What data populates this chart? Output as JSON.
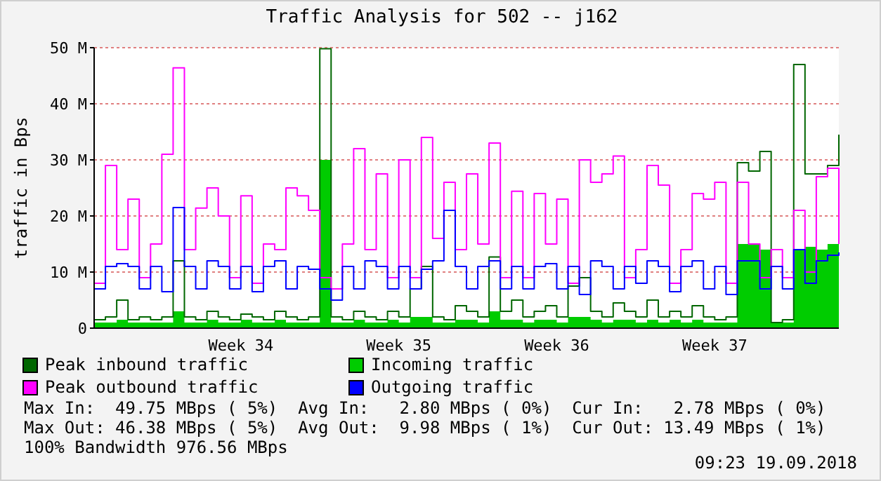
{
  "chart_data": {
    "type": "step",
    "title": "Traffic Analysis for 502 -- j162",
    "ylabel": "traffic in Bps",
    "categories": [
      null,
      null,
      null,
      null,
      null,
      null,
      null,
      null,
      null,
      null,
      null,
      null,
      null,
      "Week 34",
      null,
      null,
      null,
      null,
      null,
      null,
      null,
      null,
      null,
      null,
      null,
      null,
      null,
      "Week 35",
      null,
      null,
      null,
      null,
      null,
      null,
      null,
      null,
      null,
      null,
      null,
      null,
      null,
      "Week 36",
      null,
      null,
      null,
      null,
      null,
      null,
      null,
      null,
      null,
      null,
      null,
      null,
      null,
      "Week 37",
      null,
      null,
      null,
      null,
      null,
      null,
      null,
      null,
      null,
      null,
      null
    ],
    "ylim": [
      0,
      50
    ],
    "yticks": [
      {
        "value": 0,
        "label": "0"
      },
      {
        "value": 10,
        "label": "10 M"
      },
      {
        "value": 20,
        "label": "20 M"
      },
      {
        "value": 30,
        "label": "30 M"
      },
      {
        "value": 40,
        "label": "40 M"
      },
      {
        "value": 50,
        "label": "50 M"
      }
    ],
    "grid": "y",
    "legend": "bottom",
    "series": [
      {
        "name": "Peak inbound traffic",
        "color": "#006600",
        "values": [
          1.5,
          2,
          5,
          1.5,
          2,
          1.5,
          2,
          12,
          2,
          1.5,
          3,
          2,
          1.5,
          2.5,
          2,
          1.5,
          3,
          2,
          1.5,
          2,
          49.8,
          2,
          1.5,
          3,
          2,
          1.5,
          3,
          2,
          7,
          11,
          2,
          1.5,
          4,
          3,
          2,
          12.7,
          3,
          5,
          2,
          3,
          4,
          2,
          7.5,
          9,
          3,
          2,
          4.5,
          3,
          2,
          5,
          2,
          3,
          2,
          4,
          2,
          1.5,
          2,
          29.5,
          28,
          31.5,
          1,
          1.5,
          47,
          27.5,
          27.5,
          29,
          34.5
        ]
      },
      {
        "name": "Incoming traffic",
        "type": "area",
        "color": "#00cc00",
        "values": [
          1,
          1,
          1.5,
          1,
          1,
          1,
          1,
          3,
          1,
          1,
          1.5,
          1,
          1,
          1.5,
          1,
          1,
          1.5,
          1,
          1,
          1,
          30,
          1,
          1,
          1.5,
          1,
          1,
          1.5,
          1,
          2,
          2,
          1,
          1,
          1.5,
          1.5,
          1,
          3,
          1.5,
          1.5,
          1,
          1.5,
          1.5,
          1,
          2,
          2,
          1.5,
          1,
          1.5,
          1.5,
          1,
          1.5,
          1,
          1.5,
          1,
          1.5,
          1,
          1,
          1,
          15,
          15,
          14,
          1,
          1,
          14,
          14.5,
          14,
          15,
          14
        ]
      },
      {
        "name": "Peak outbound traffic",
        "color": "#ff00ff",
        "values": [
          8,
          29,
          14,
          23,
          9,
          15,
          31,
          46.4,
          14,
          21.4,
          25,
          20,
          9,
          23.6,
          8,
          15,
          14,
          25,
          23.6,
          21,
          9,
          7,
          15,
          32,
          14,
          27.5,
          9,
          30,
          9,
          34,
          16,
          26,
          14,
          27.5,
          15,
          33,
          9,
          24.4,
          9,
          24,
          15,
          23,
          8,
          30,
          26,
          27.5,
          30.7,
          9,
          14,
          29,
          25.5,
          8,
          14,
          24,
          23,
          26,
          8,
          26,
          15,
          9,
          14,
          9,
          21,
          10,
          27,
          28.5,
          15
        ]
      },
      {
        "name": "Outgoing traffic",
        "color": "#0000ff",
        "values": [
          7,
          11,
          11.5,
          11,
          7,
          11,
          6.5,
          21.5,
          11,
          7,
          12,
          11,
          7,
          11,
          6.5,
          11,
          12,
          7,
          11,
          10.5,
          7,
          5,
          11,
          7,
          12,
          11,
          7,
          11,
          7,
          10.5,
          12,
          21,
          11,
          7,
          11,
          12,
          7,
          11,
          7,
          11,
          11.5,
          7,
          11,
          6,
          12,
          11,
          7,
          11,
          8,
          12,
          11,
          6.5,
          11,
          12,
          7,
          11,
          6,
          12,
          12,
          7,
          11,
          7,
          14,
          8,
          12,
          13,
          13.5
        ]
      }
    ],
    "annotations": [
      "Max In:  49.75 MBps ( 5%)  Avg In:   2.80 MBps ( 0%)  Cur In:   2.78 MBps ( 0%)",
      "Max Out: 46.38 MBps ( 5%)  Avg Out:  9.98 MBps ( 1%)  Cur Out: 13.49 MBps ( 1%)",
      "100% Bandwidth 976.56 MBps",
      "09:23 19.09.2018"
    ]
  }
}
